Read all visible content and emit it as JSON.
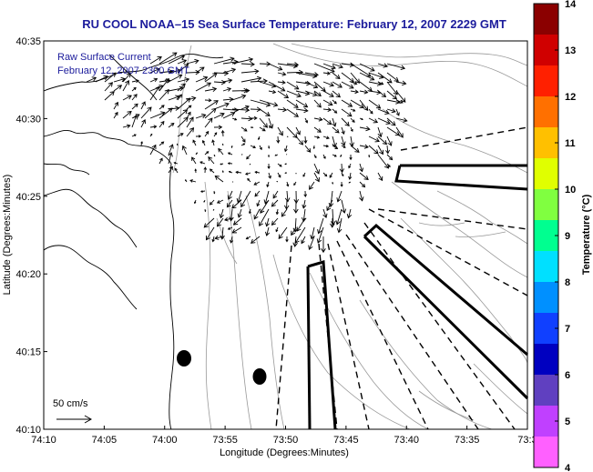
{
  "title": "RU COOL  NOAA–15  Sea Surface Temperature:  February 12, 2007 2229 GMT",
  "legend": {
    "line1": "Raw Surface Current",
    "line2": "February 12, 2007 2300 GMT"
  },
  "scale_label": "50 cm/s",
  "axes": {
    "xlabel": "Longitude (Degrees:Minutes)",
    "ylabel": "Latitude (Degrees:Minutes)",
    "xticks": [
      "74:10",
      "74:05",
      "74:00",
      "73:55",
      "73:50",
      "73:45",
      "73:40",
      "73:35",
      "73:3"
    ],
    "yticks": [
      "40:35",
      "40:30",
      "40:25",
      "40:20",
      "40:15",
      "40:10"
    ]
  },
  "colorbar": {
    "label": "Temperature (°C)",
    "ticks": [
      "14",
      "13",
      "12",
      "11",
      "10",
      "9",
      "8",
      "7",
      "6",
      "5",
      "4"
    ],
    "colors": [
      "#8b0000",
      "#d00000",
      "#ff2000",
      "#ff7000",
      "#ffc000",
      "#e0ff00",
      "#80ff40",
      "#00ff90",
      "#00e0ff",
      "#0090ff",
      "#1040ff",
      "#0000c0",
      "#6040c0",
      "#c040ff",
      "#ff60ff"
    ]
  },
  "colors": {
    "title": "#1c1c9c",
    "land": "#ffffff",
    "contour": "#888888",
    "arrows": "#000000"
  }
}
